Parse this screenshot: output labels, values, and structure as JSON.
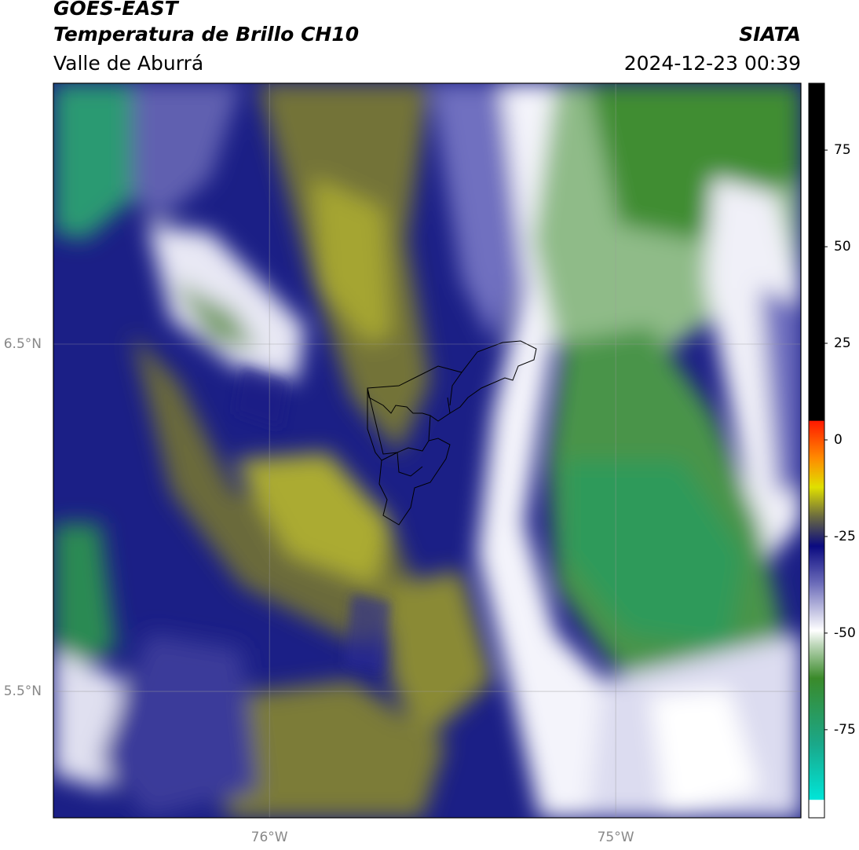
{
  "header": {
    "title": "GOES-EAST",
    "subtitle": "Temperatura de Brillo CH10",
    "region": "Valle de Aburrá",
    "source": "SIATA",
    "datetime": "2024-12-23 00:39"
  },
  "map": {
    "xlim": [
      -76.624,
      -74.465
    ],
    "ylim": [
      5.136,
      7.251
    ],
    "xticks": [
      {
        "value": -76,
        "label": "76°W"
      },
      {
        "value": -75,
        "label": "75°W"
      }
    ],
    "yticks": [
      {
        "value": 5.5,
        "label": "5.5°N"
      },
      {
        "value": 6.5,
        "label": "6.5°N"
      }
    ],
    "grid": true
  },
  "colorbar": {
    "lim": [
      -97.8,
      92.3
    ],
    "ticks": [
      75,
      50,
      25,
      0,
      -25,
      -50,
      -75
    ]
  }
}
